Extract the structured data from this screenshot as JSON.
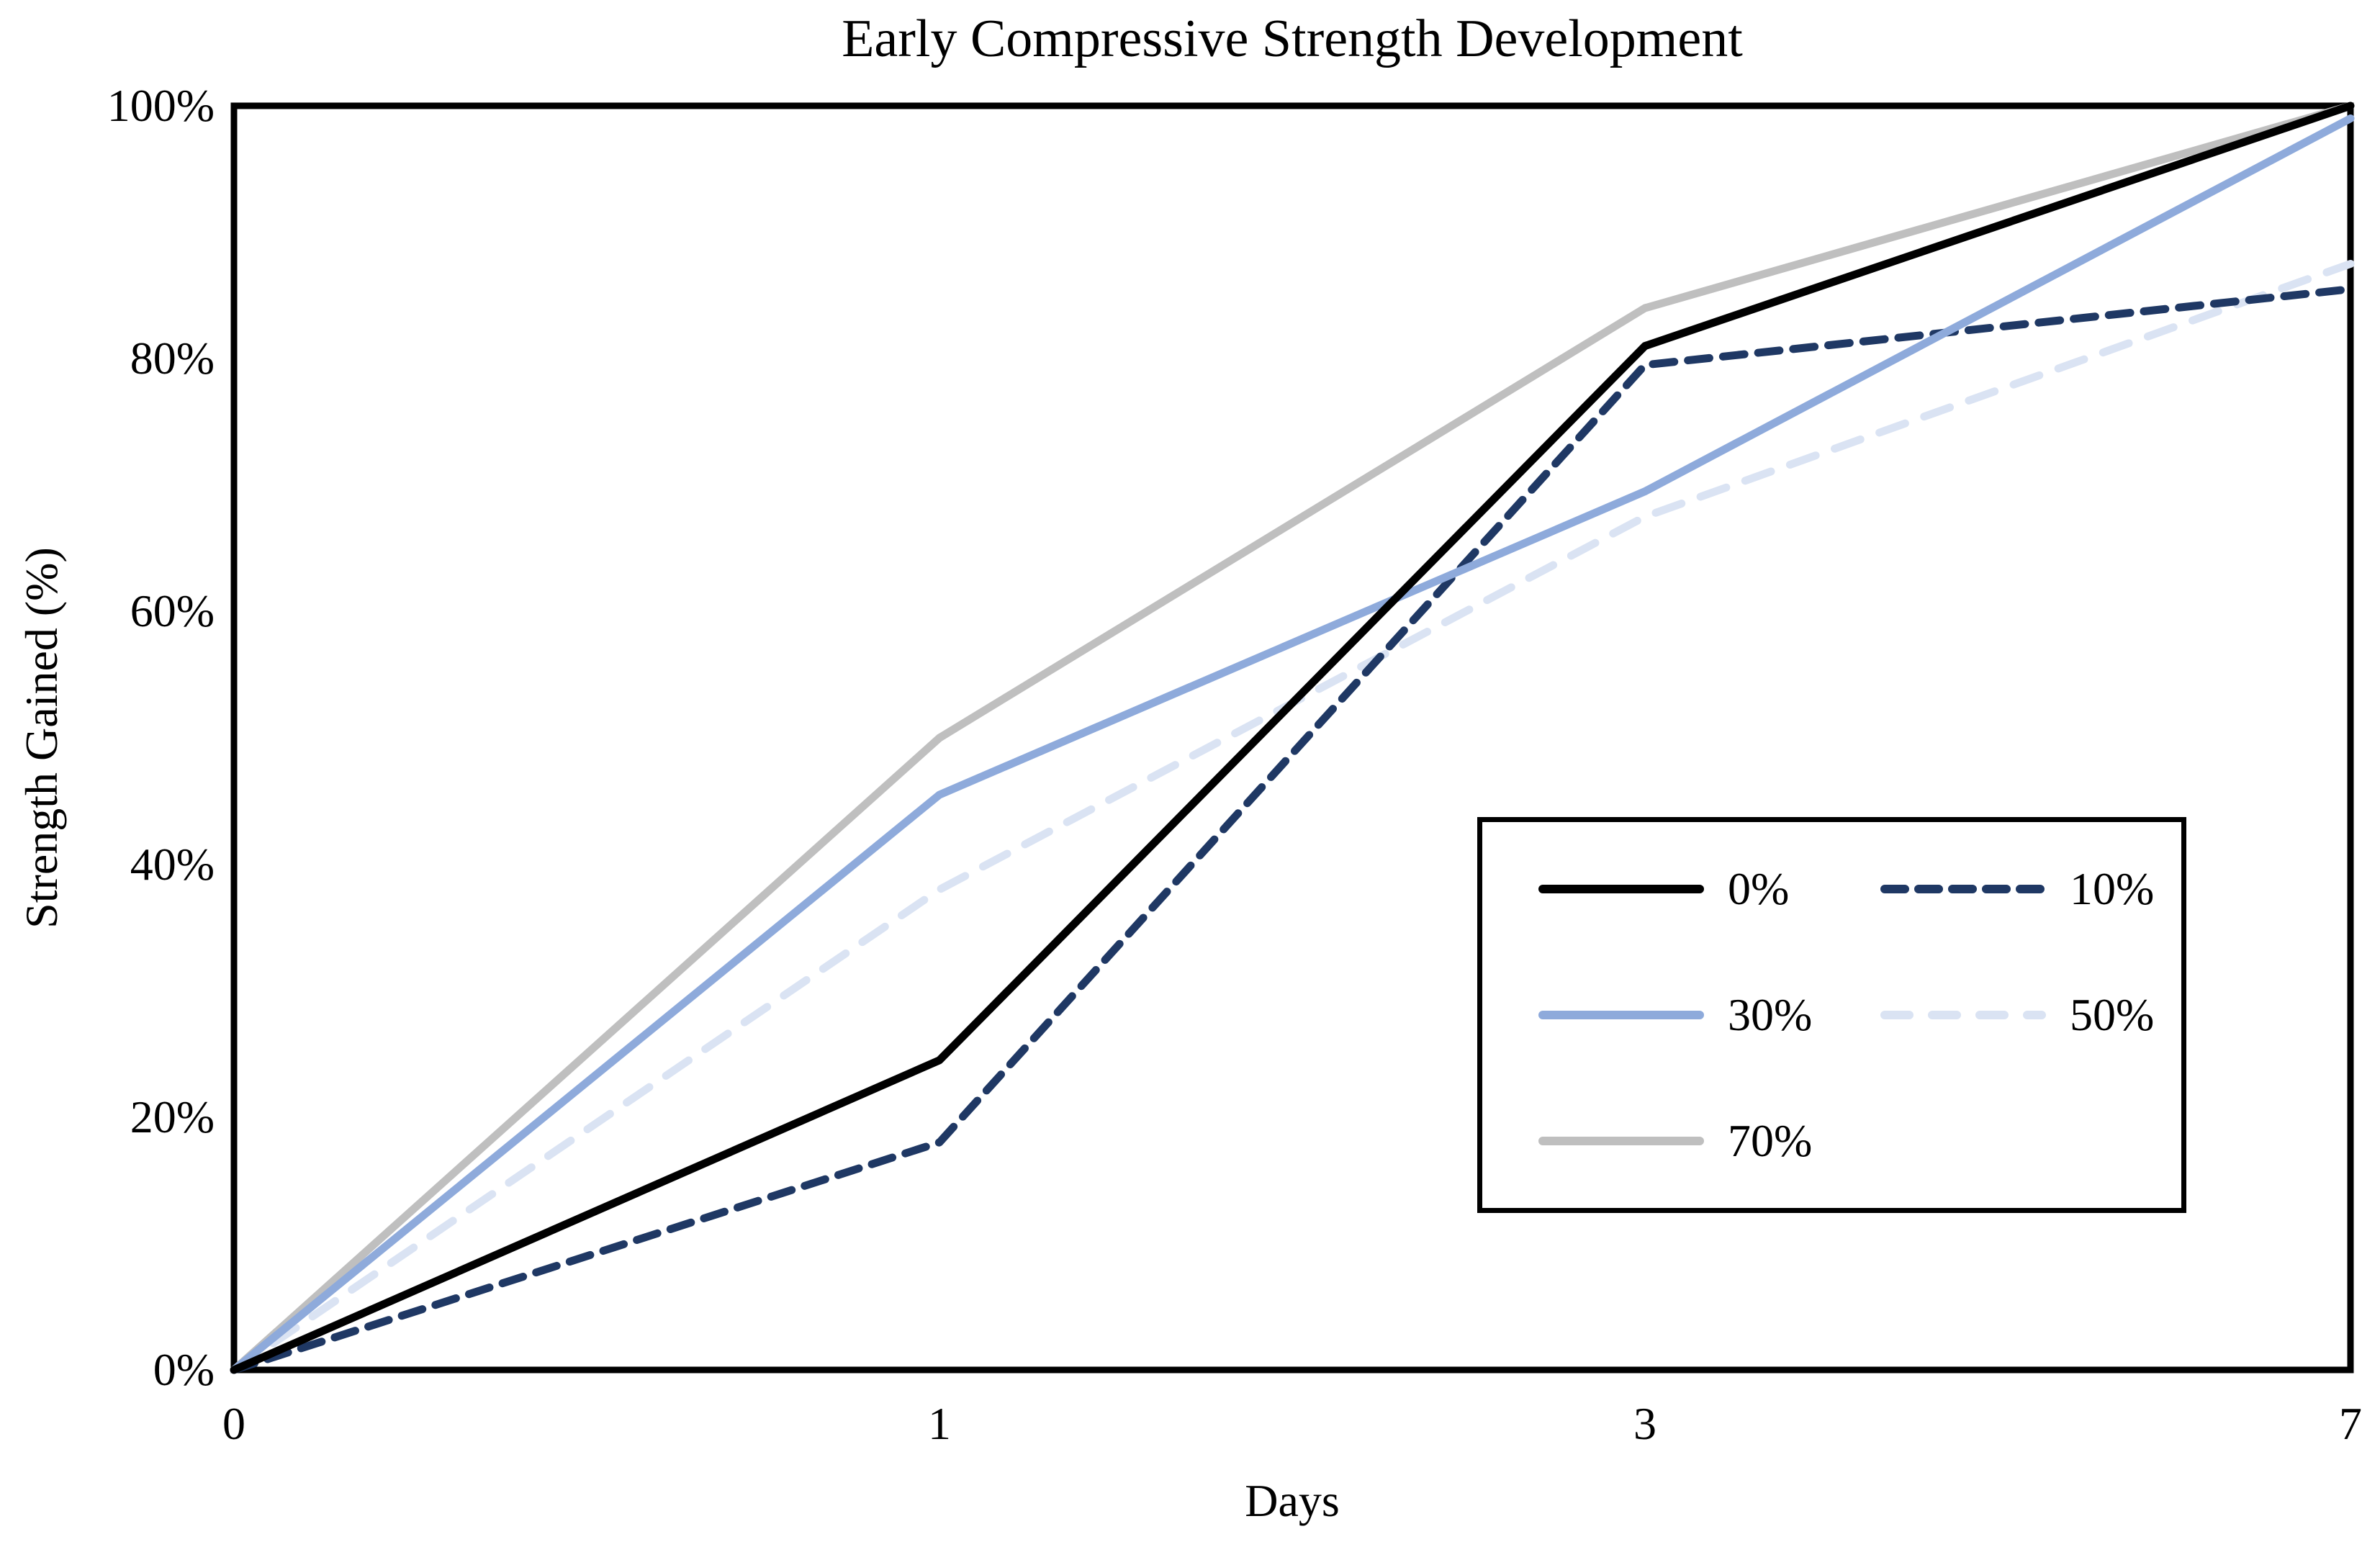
{
  "chart_data": {
    "type": "line",
    "title": "Early Compressive Strength Development",
    "x_axis": {
      "label": "Days",
      "ticks": [
        "0",
        "1",
        "3",
        "7"
      ],
      "spacing": "categorical-even"
    },
    "y_axis": {
      "label": "Strength Gained (%)",
      "range": [
        0,
        100
      ],
      "ticks": [
        {
          "label": "0%",
          "value": 0
        },
        {
          "label": "20%",
          "value": 20
        },
        {
          "label": "40%",
          "value": 40
        },
        {
          "label": "60%",
          "value": 60
        },
        {
          "label": "80%",
          "value": 80
        },
        {
          "label": "100%",
          "value": 100
        }
      ]
    },
    "grid": false,
    "plot_border": true,
    "legend": {
      "position": "inside-right",
      "border": true,
      "columns": 2
    },
    "series": [
      {
        "name": "0%",
        "color": "#000000",
        "dash": "solid",
        "values": [
          0,
          24.5,
          81,
          100
        ]
      },
      {
        "name": "10%",
        "color": "#1F3864",
        "dash": "dashed",
        "values": [
          0,
          18,
          79.5,
          85.5
        ]
      },
      {
        "name": "30%",
        "color": "#8EAADB",
        "dash": "solid",
        "values": [
          0,
          45.5,
          69.5,
          99
        ]
      },
      {
        "name": "50%",
        "color": "#DAE3F3",
        "dash": "dashed",
        "values": [
          0,
          38,
          67.5,
          87.5
        ]
      },
      {
        "name": "70%",
        "color": "#BFBFBF",
        "dash": "solid",
        "values": [
          0,
          50,
          84,
          100
        ]
      }
    ]
  }
}
